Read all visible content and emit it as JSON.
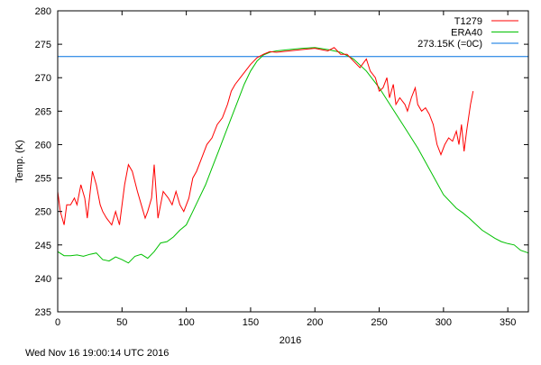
{
  "chart_data": {
    "type": "line",
    "title": "",
    "xlabel": "2016",
    "ylabel": "Temp. (K)",
    "xlim": [
      0,
      366
    ],
    "ylim": [
      235,
      280
    ],
    "xticks": [
      0,
      50,
      100,
      150,
      200,
      250,
      300,
      350
    ],
    "yticks": [
      235,
      240,
      245,
      250,
      255,
      260,
      265,
      270,
      275,
      280
    ],
    "legend_position": "top-right",
    "footer": "Wed Nov 16 19:00:14 UTC 2016",
    "series": [
      {
        "name": "T1279",
        "color": "#ff0000",
        "x": [
          0,
          2,
          5,
          7,
          10,
          13,
          15,
          18,
          21,
          23,
          27,
          30,
          33,
          35,
          38,
          42,
          45,
          48,
          52,
          55,
          58,
          62,
          65,
          68,
          70,
          73,
          75,
          78,
          82,
          86,
          89,
          92,
          95,
          98,
          102,
          105,
          108,
          112,
          116,
          120,
          124,
          128,
          132,
          135,
          138,
          142,
          146,
          150,
          155,
          160,
          165,
          170,
          180,
          190,
          200,
          210,
          215,
          220,
          225,
          230,
          235,
          240,
          243,
          247,
          250,
          253,
          256,
          258,
          261,
          263,
          266,
          270,
          272,
          275,
          278,
          280,
          283,
          286,
          289,
          292,
          295,
          298,
          301,
          304,
          307,
          310,
          312,
          314,
          316,
          318,
          321,
          323
        ],
        "y": [
          253,
          250,
          248,
          251,
          251,
          252,
          251,
          254,
          252,
          249,
          256,
          254,
          251,
          250,
          249,
          248,
          250,
          248,
          254,
          257,
          256,
          253,
          251,
          249,
          250,
          252,
          257,
          249,
          253,
          252,
          251,
          253,
          251,
          250,
          252,
          255,
          256,
          258,
          260,
          261,
          263,
          264,
          266,
          268,
          269,
          270,
          271,
          272,
          273,
          273.5,
          273.9,
          273.8,
          274,
          274.2,
          274.4,
          274,
          274.5,
          273.5,
          273.5,
          272.5,
          271.5,
          272.8,
          271,
          270,
          268,
          268.5,
          270,
          267,
          269,
          266,
          267,
          266,
          265,
          267,
          268.5,
          266,
          265,
          265.5,
          264.5,
          263,
          260,
          258.5,
          260,
          261,
          260.5,
          262,
          260,
          263,
          259,
          262,
          266,
          268
        ]
      },
      {
        "name": "ERA40",
        "color": "#00c000",
        "x": [
          0,
          5,
          10,
          15,
          20,
          25,
          30,
          35,
          40,
          45,
          50,
          55,
          60,
          65,
          70,
          75,
          80,
          85,
          90,
          95,
          100,
          105,
          110,
          115,
          120,
          125,
          130,
          135,
          140,
          145,
          150,
          155,
          160,
          165,
          170,
          180,
          190,
          200,
          210,
          220,
          230,
          240,
          250,
          260,
          270,
          280,
          290,
          300,
          310,
          315,
          320,
          330,
          340,
          345,
          350,
          355,
          360,
          366
        ],
        "y": [
          244,
          243.4,
          243.4,
          243.5,
          243.3,
          243.6,
          243.8,
          242.8,
          242.6,
          243.2,
          242.8,
          242.3,
          243.3,
          243.6,
          243,
          244,
          245.3,
          245.5,
          246.2,
          247.2,
          248,
          250,
          252,
          254,
          256.5,
          259,
          261.5,
          264,
          266.5,
          269,
          271,
          272.5,
          273.4,
          273.8,
          274,
          274.2,
          274.4,
          274.5,
          274.2,
          273.8,
          272.8,
          271,
          268.5,
          265.5,
          262.5,
          259.5,
          256,
          252.5,
          250.5,
          249.8,
          249,
          247.2,
          246,
          245.5,
          245.2,
          245,
          244.2,
          243.8
        ]
      },
      {
        "name": "273.15K (=0C)",
        "color": "#0070e0",
        "x": [
          0,
          366
        ],
        "y": [
          273.15,
          273.15
        ]
      }
    ]
  }
}
